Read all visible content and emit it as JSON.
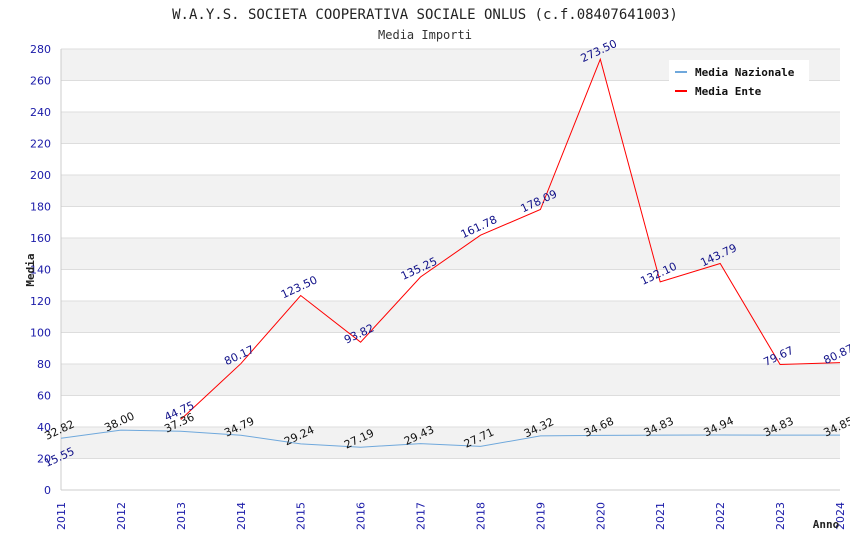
{
  "chart_data": {
    "type": "line",
    "title": "W.A.Y.S. SOCIETA COOPERATIVA SOCIALE ONLUS (c.f.08407641003)",
    "subtitle": "Media Importi",
    "xlabel": "Anno",
    "ylabel": "Media",
    "x": [
      2011,
      2012,
      2013,
      2014,
      2015,
      2016,
      2017,
      2018,
      2019,
      2020,
      2021,
      2022,
      2023,
      2024
    ],
    "ylim": [
      0,
      280
    ],
    "yticks": [
      0,
      20,
      40,
      60,
      80,
      100,
      120,
      140,
      160,
      180,
      200,
      220,
      240,
      260,
      280
    ],
    "grid": "horizontal alternating bands",
    "legend_position": "top-right",
    "series": [
      {
        "name": "Media Nazionale",
        "color": "#6fa8dc",
        "label_color": "#111111",
        "values": [
          32.82,
          38.0,
          37.36,
          34.79,
          29.24,
          27.19,
          29.43,
          27.71,
          34.32,
          34.68,
          34.83,
          34.94,
          34.83,
          34.85
        ],
        "labels": [
          "32.82",
          "38.00",
          "37.36",
          "34.79",
          "29.24",
          "27.19",
          "29.43",
          "27.71",
          "34.32",
          "34.68",
          "34.83",
          "34.94",
          "34.83",
          "34.85"
        ]
      },
      {
        "name": "Media Ente",
        "color": "#ff0000",
        "label_color": "#101088",
        "values": [
          15.55,
          null,
          44.75,
          80.17,
          123.5,
          93.82,
          135.25,
          161.78,
          178.09,
          273.5,
          132.1,
          143.79,
          79.67,
          80.87
        ],
        "labels": [
          "15.55",
          null,
          "44.75",
          "80.17",
          "123.50",
          "93.82",
          "135.25",
          "161.78",
          "178.09",
          "273.50",
          "132.10",
          "143.79",
          "79.67",
          "80.87"
        ]
      }
    ]
  }
}
